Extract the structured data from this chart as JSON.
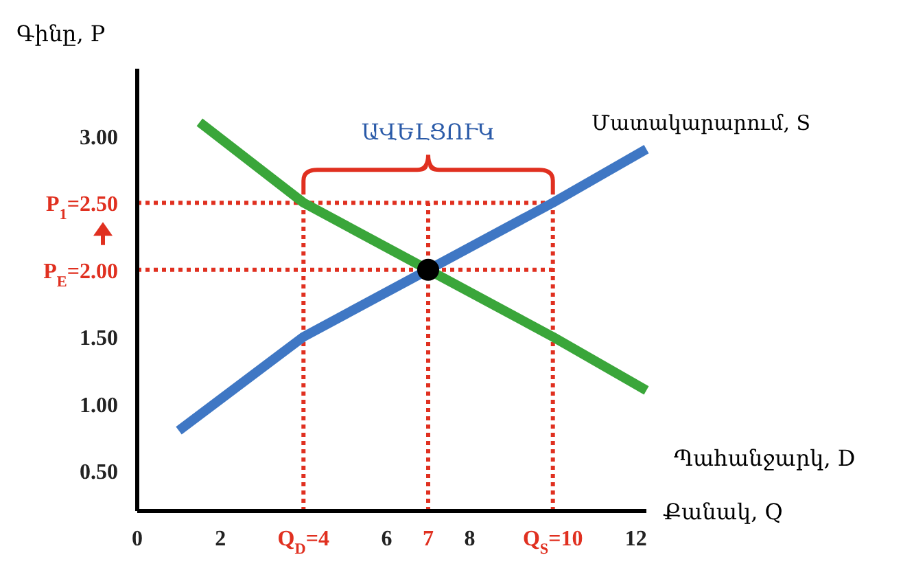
{
  "chart_data": {
    "type": "line",
    "xlabel": "Քանակ, Q",
    "ylabel": "Գինը, P",
    "xlim": [
      0,
      12.25
    ],
    "ylim": [
      0.2,
      3.5
    ],
    "xticks": [
      0,
      2,
      {
        "value": 4,
        "label": "Q$_{D}$=4"
      },
      6,
      7,
      8,
      {
        "value": 10,
        "label": "Q$_{S}$=10"
      },
      12
    ],
    "yticks": [
      {
        "value": 0.5,
        "label": "0.50"
      },
      {
        "value": 1,
        "label": "1.00"
      },
      {
        "value": 1.5,
        "label": "1.50"
      },
      {
        "value": 2,
        "label": "P$_{E}$=2.00"
      },
      {
        "value": 2.5,
        "label": "P$_{1}$=2.50"
      },
      {
        "value": 3,
        "label": "3.00"
      }
    ],
    "series": [
      {
        "name": "Մատակարարում, S",
        "color": "#3f77c4",
        "x": [
          1,
          4,
          7,
          10,
          12.25
        ],
        "values": [
          0.8,
          1.5,
          2.0,
          2.5,
          2.9
        ]
      },
      {
        "name": "Պահանջարկ, D",
        "color": "#3aa63a",
        "x": [
          1.5,
          4,
          7,
          10,
          12.25
        ],
        "values": [
          3.1,
          2.5,
          2.0,
          1.5,
          1.1
        ]
      },
      {
        "type": "scatter",
        "color": "#000000",
        "x": [
          7
        ],
        "values": [
          2.0
        ],
        "marker": "circle"
      }
    ],
    "ref_lines": [
      {
        "axis": "y",
        "value": 2.5,
        "color": "#e03020",
        "line_style": "dotted"
      },
      {
        "axis": "y",
        "value": 2.0,
        "color": "#e03020",
        "line_style": "dotted"
      },
      {
        "axis": "x",
        "value": 4,
        "color": "#e03020",
        "line_style": "dotted"
      },
      {
        "axis": "x",
        "value": 7,
        "color": "#e03020",
        "line_style": "dotted"
      },
      {
        "axis": "x",
        "value": 10,
        "color": "#e03020",
        "line_style": "dotted"
      }
    ],
    "annotations": [
      "ԱՎԵԼՑՈՒԿ"
    ],
    "grid": false,
    "legend": false
  }
}
